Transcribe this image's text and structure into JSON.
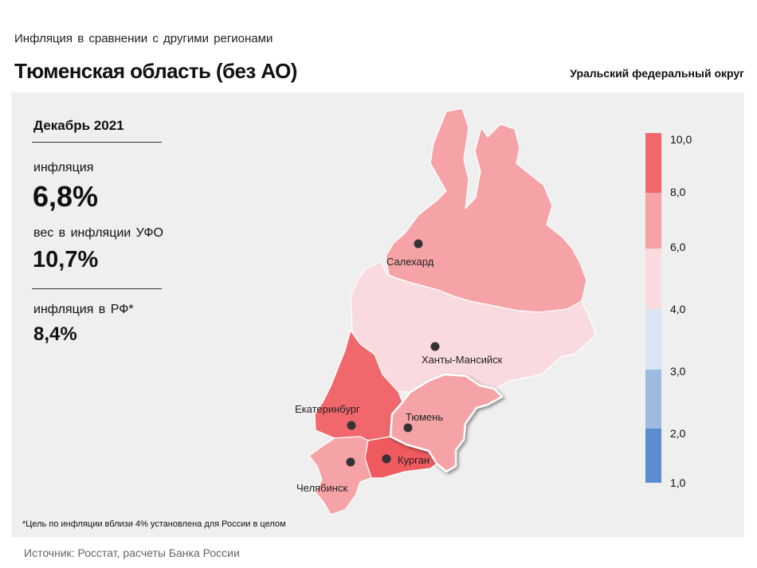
{
  "header": {
    "subtitle": "Инфляция  в сравнении  с другими  регионами",
    "title": "Тюменская область (без АО)",
    "district": "Уральский федеральный округ"
  },
  "stats": {
    "period": "Декабрь 2021",
    "inflation_label": "инфляция",
    "inflation_value": "6,8%",
    "weight_label": "вес в инфляции  УФО",
    "weight_value": "10,7%",
    "rf_label": "инфляция  в РФ*",
    "rf_value": "8,4%"
  },
  "footnote": "*Цель по инфляции вблизи 4% установлена для России в целом",
  "source": "Источник: Росстат, расчеты Банка России",
  "legend": {
    "ticks": [
      "10,0",
      "8,0",
      "6,0",
      "4,0",
      "3,0",
      "2,0",
      "1,0"
    ],
    "bins": [
      {
        "range": "8-10",
        "color": "#f0686b"
      },
      {
        "range": "6-8",
        "color": "#f5a3a6"
      },
      {
        "range": "4-6",
        "color": "#f9dade"
      },
      {
        "range": "3-4",
        "color": "#dbe4f3"
      },
      {
        "range": "2-3",
        "color": "#9dbbe0"
      },
      {
        "range": "1-2",
        "color": "#5b8ccd"
      }
    ]
  },
  "colors": {
    "yamal": "#f5a3a6",
    "hmao": "#f9dade",
    "sverdlovsk": "#f0686b",
    "tyumen": "#f5a3a6",
    "kurgan": "#ee5a5e",
    "chelyabinsk": "#f5a3a6"
  },
  "cities": {
    "salekhard": "Салехард",
    "khanty": "Ханты-Мансийск",
    "ekaterinburg": "Екатеринбург",
    "tyumen": "Тюмень",
    "kurgan": "Курган",
    "chelyabinsk": "Челябинск"
  }
}
